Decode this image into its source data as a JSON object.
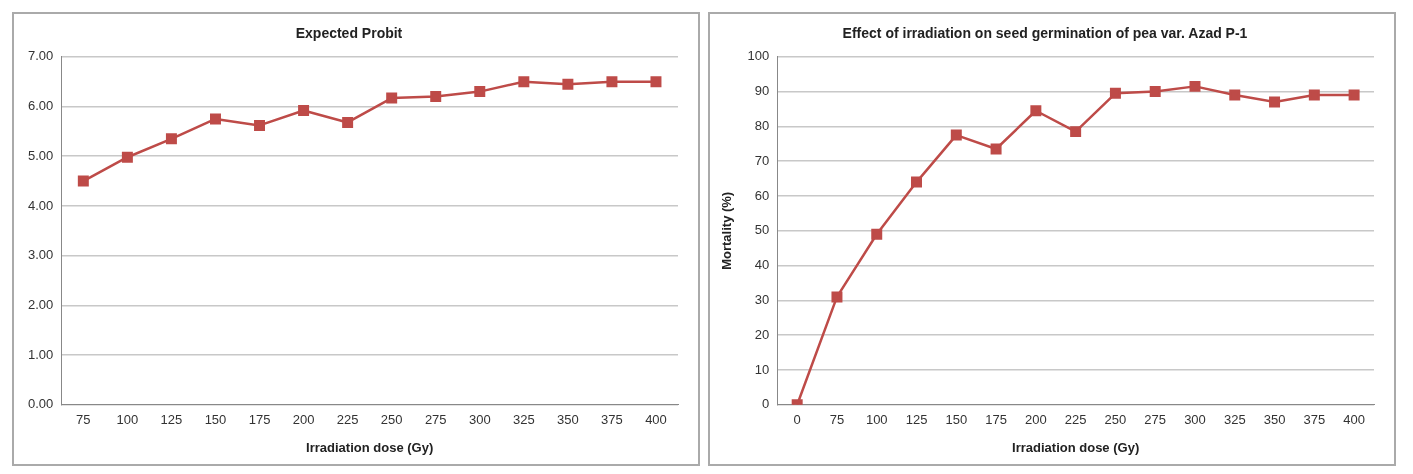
{
  "chart_data": [
    {
      "type": "line",
      "title": "Expected Probit",
      "xlabel": "Irradiation dose (Gy)",
      "categories": [
        "75",
        "100",
        "125",
        "150",
        "175",
        "200",
        "225",
        "250",
        "275",
        "300",
        "325",
        "350",
        "375",
        "400"
      ],
      "series": [
        {
          "color": "#be4b48",
          "values": [
            4.5,
            4.98,
            5.35,
            5.75,
            5.62,
            5.92,
            5.68,
            6.17,
            6.2,
            6.3,
            6.5,
            6.45,
            6.5,
            6.5
          ]
        }
      ],
      "ylim": [
        0,
        7
      ],
      "yticks": [
        {
          "value": 0,
          "label": "0.00"
        },
        {
          "value": 1,
          "label": "1.00"
        },
        {
          "value": 2,
          "label": "2.00"
        },
        {
          "value": 3,
          "label": "3.00"
        },
        {
          "value": 4,
          "label": "4.00"
        },
        {
          "value": 5,
          "label": "5.00"
        },
        {
          "value": 6,
          "label": "6.00"
        },
        {
          "value": 7,
          "label": "7.00"
        }
      ],
      "grid": "y",
      "marker": "square",
      "line_style": "solid"
    },
    {
      "type": "line",
      "title": "Effect of irradiation on seed germination of pea var. Azad P-1",
      "xlabel": "Irradiation dose (Gy)",
      "ylabel": "Mortality (%)",
      "categories": [
        "0",
        "75",
        "100",
        "125",
        "150",
        "175",
        "200",
        "225",
        "250",
        "275",
        "300",
        "325",
        "350",
        "375",
        "400"
      ],
      "series": [
        {
          "color": "#be4b48",
          "values": [
            0,
            31,
            49,
            64,
            77.5,
            73.5,
            84.5,
            78.5,
            89.5,
            90,
            91.5,
            89,
            87,
            89,
            89
          ]
        }
      ],
      "ylim": [
        0,
        100
      ],
      "yticks": [
        0,
        10,
        20,
        30,
        40,
        50,
        60,
        70,
        80,
        90,
        100
      ],
      "grid": "y",
      "marker": "square",
      "line_style": "solid"
    }
  ]
}
